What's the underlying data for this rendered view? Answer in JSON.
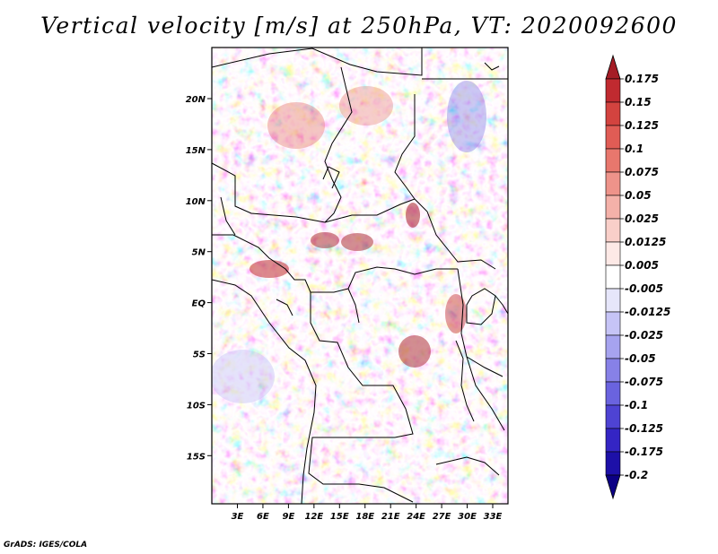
{
  "title": "Vertical velocity [m/s] at 250hPa, VT: 2020092600",
  "credit": "GrADS: IGES/COLA",
  "map": {
    "lat_labels": [
      "20N",
      "15N",
      "10N",
      "5N",
      "EQ",
      "5S",
      "10S",
      "15S"
    ],
    "lon_labels": [
      "3E",
      "6E",
      "9E",
      "12E",
      "15E",
      "18E",
      "21E",
      "24E",
      "27E",
      "30E",
      "33E"
    ],
    "lat_range": [
      -20,
      25
    ],
    "lon_range": [
      0,
      35
    ]
  },
  "colorbar": {
    "labels": [
      "0.175",
      "0.15",
      "0.125",
      "0.1",
      "0.075",
      "0.05",
      "0.025",
      "0.0125",
      "0.005",
      "-0.005",
      "-0.0125",
      "-0.025",
      "-0.05",
      "-0.075",
      "-0.1",
      "-0.125",
      "-0.175",
      "-0.2"
    ],
    "colors": [
      "#a51d26",
      "#c02a30",
      "#d3433f",
      "#e05c55",
      "#e8776d",
      "#ee938a",
      "#f4b1a9",
      "#f9cfc9",
      "#fde9e6",
      "#ffffff",
      "#e6e6fa",
      "#c6c4f6",
      "#a6a3ef",
      "#8781e7",
      "#6a63df",
      "#4e43d3",
      "#3425c4",
      "#1d10a8",
      "#0c0085"
    ]
  },
  "colors": {
    "positive": "#d63c3c",
    "negative": "#4a4ad8",
    "neutral": "#ffffff"
  }
}
